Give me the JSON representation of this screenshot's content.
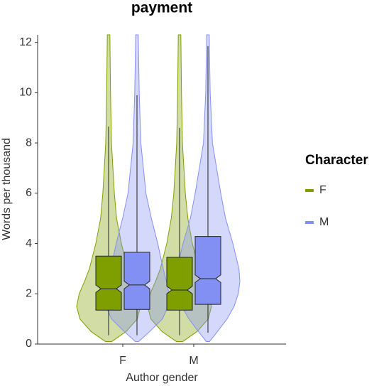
{
  "chart_data": {
    "type": "violin",
    "title": "payment",
    "x_label": "Author gender",
    "y_label": "Words per thousand",
    "legend_title": "Character",
    "categories": [
      "F",
      "M"
    ],
    "ylim": [
      0,
      12.3
    ],
    "yticks": [
      0,
      2,
      4,
      6,
      8,
      10,
      12
    ],
    "violin_y": [
      0.1,
      0.5,
      1,
      1.5,
      2,
      2.5,
      3,
      4,
      5,
      6,
      8,
      10,
      12.3
    ],
    "series": [
      {
        "name": "F",
        "color": "#7f9f00",
        "whisker_low": [
          0.35,
          0.35
        ],
        "q1": [
          1.35,
          1.35
        ],
        "notch_low": [
          2.05,
          2.0
        ],
        "median": [
          2.2,
          2.15
        ],
        "notch_high": [
          2.35,
          2.3
        ],
        "q3": [
          3.5,
          3.45
        ],
        "whisker_high": [
          8.65,
          8.6
        ],
        "density": [
          [
            0.1,
            0.55,
            0.9,
            1,
            0.92,
            0.75,
            0.6,
            0.4,
            0.25,
            0.18,
            0.09,
            0.06,
            0.04
          ],
          [
            0.1,
            0.55,
            0.9,
            1,
            0.92,
            0.75,
            0.6,
            0.4,
            0.26,
            0.18,
            0.09,
            0.06,
            0.04
          ]
        ]
      },
      {
        "name": "M",
        "color": "#8390f3",
        "whisker_low": [
          0.35,
          0.45
        ],
        "q1": [
          1.38,
          1.58
        ],
        "notch_low": [
          2.2,
          2.45
        ],
        "median": [
          2.35,
          2.6
        ],
        "notch_high": [
          2.5,
          2.75
        ],
        "q3": [
          3.65,
          4.28
        ],
        "whisker_high": [
          9.9,
          11.85
        ],
        "density": [
          [
            0.05,
            0.4,
            0.8,
            0.97,
            1,
            0.92,
            0.82,
            0.65,
            0.45,
            0.28,
            0.12,
            0.07,
            0.04
          ],
          [
            0.05,
            0.3,
            0.6,
            0.82,
            0.95,
            1,
            0.97,
            0.78,
            0.55,
            0.4,
            0.14,
            0.07,
            0.04
          ]
        ]
      }
    ]
  }
}
